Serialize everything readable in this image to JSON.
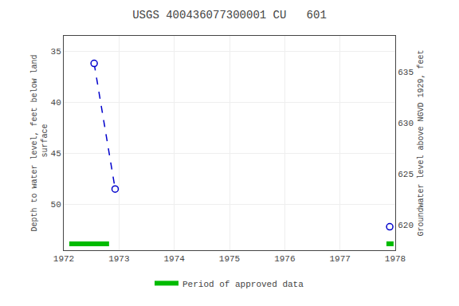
{
  "chart_data": {
    "type": "line",
    "title": "USGS 400436077300001 CU   601",
    "ylabel": "Depth to water level, feet below land\n surface",
    "y2label": "Groundwater level above NGVD 1929, feet",
    "x": [
      1972.55,
      1972.93,
      1977.9
    ],
    "series": [
      {
        "type": "line",
        "line_style": "dashed",
        "color": "#0000cc",
        "values": [
          36.2,
          48.5,
          null
        ]
      },
      {
        "type": "scatter",
        "marker": "open circle",
        "color": "#0000cc",
        "values": [
          36.2,
          48.5,
          52.2
        ]
      },
      {
        "name": "Period of approved data",
        "type": "span",
        "color": "#00bb00",
        "x_start": [
          1972.1,
          1977.84
        ],
        "x_end": [
          1972.82,
          1977.97
        ]
      }
    ],
    "xlim": [
      1972,
      1978
    ],
    "xticks": [
      1972,
      1973,
      1974,
      1975,
      1976,
      1977,
      1978
    ],
    "ylim": [
      54.5,
      33.5
    ],
    "yticks": [
      35,
      40,
      45,
      50
    ],
    "y2lim": [
      617.5,
      638.5
    ],
    "y2ticks": [
      635,
      630,
      625,
      620
    ],
    "grid": true,
    "legend": "bottom"
  }
}
